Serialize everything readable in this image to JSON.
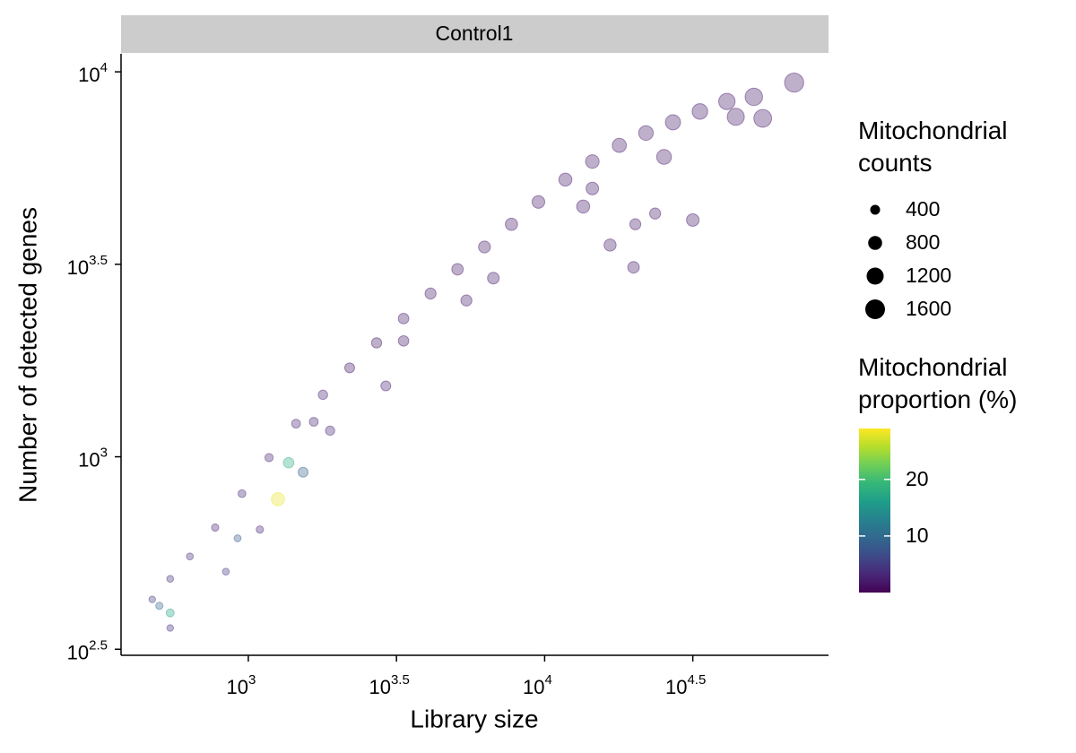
{
  "chart_data": {
    "type": "scatter",
    "facet": "Control1",
    "xlabel": "Library size",
    "ylabel": "Number of detected genes",
    "log_x": true,
    "log_y": true,
    "xlim": [
      372,
      90780
    ],
    "ylim": [
      305,
      11140
    ],
    "xticks": [
      {
        "value": 1000,
        "label": "10^3"
      },
      {
        "value": 3162.28,
        "label": "10^3.5"
      },
      {
        "value": 10000,
        "label": "10^4"
      },
      {
        "value": 31622.78,
        "label": "10^4.5"
      }
    ],
    "yticks": [
      {
        "value": 316.23,
        "label": "10^2.5"
      },
      {
        "value": 1000,
        "label": "10^3"
      },
      {
        "value": 3162.28,
        "label": "10^3.5"
      },
      {
        "value": 10000,
        "label": "10^4"
      }
    ],
    "x": [
      474,
      545,
      635,
      773,
      952,
      1175,
      1449,
      1786,
      2198,
      2710,
      3342,
      4121,
      5082,
      6266,
      7727,
      9528,
      11749,
      14488,
      17865,
      21978,
      27101,
      33420,
      41210,
      50816,
      69500,
      1663,
      3342,
      6714,
      13490,
      25290,
      44160,
      54450,
      16630,
      19950,
      23600,
      31620,
      20230,
      1259,
      1368,
      1531,
      545,
      545,
      1094,
      920,
      840,
      501,
      1888,
      2911,
      5445,
      14488
    ],
    "y": [
      426,
      482,
      551,
      655,
      802,
      995,
      1219,
      1449,
      1702,
      1977,
      2286,
      2655,
      3069,
      3508,
      4018,
      4592,
      5248,
      5848,
      6442,
      6934,
      7396,
      7888,
      8375,
      8610,
      9376,
      1233,
      2000,
      2911,
      4467,
      6012,
      7640,
      7570,
      3548,
      3105,
      4285,
      4121,
      4018,
      776,
      965,
      912,
      393,
      359,
      647,
      614,
      503,
      410,
      1169,
      1528,
      2547,
      4977
    ],
    "size": [
      180,
      190,
      200,
      220,
      250,
      280,
      320,
      360,
      400,
      430,
      460,
      500,
      540,
      580,
      620,
      660,
      700,
      760,
      820,
      880,
      940,
      1000,
      1100,
      1250,
      1500,
      320,
      450,
      560,
      700,
      900,
      1200,
      1300,
      600,
      550,
      500,
      650,
      500,
      700,
      450,
      400,
      260,
      180,
      220,
      200,
      190,
      220,
      350,
      400,
      500,
      650
    ],
    "color_value": [
      5,
      4,
      4,
      3,
      3,
      3,
      3,
      3,
      2,
      2,
      2,
      2,
      2,
      2,
      2,
      2,
      2,
      2,
      2,
      2,
      2,
      2,
      2,
      2,
      2,
      3,
      2,
      2,
      2,
      2,
      2,
      2,
      2,
      2,
      2,
      2,
      2,
      28,
      18,
      9,
      17,
      4,
      3,
      8,
      5,
      10,
      3,
      3,
      2,
      2
    ],
    "size_legend": {
      "title": "Mitochondrial counts",
      "breaks": [
        400,
        800,
        1200,
        1600
      ]
    },
    "color_legend": {
      "title": "Mitochondrial proportion (%)",
      "lim": [
        0,
        29
      ],
      "ticks": [
        10,
        20
      ]
    }
  }
}
